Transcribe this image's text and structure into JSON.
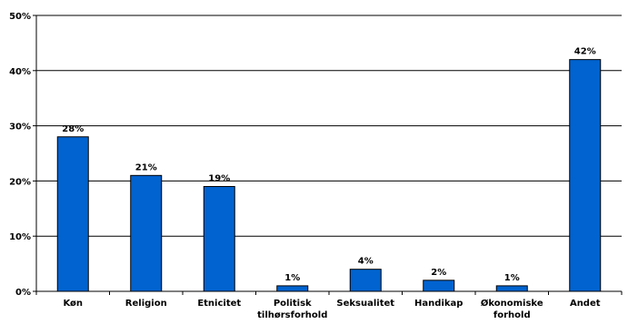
{
  "chart_data": {
    "type": "bar",
    "title": "",
    "xlabel": "",
    "ylabel": "",
    "categories": [
      [
        "Køn"
      ],
      [
        "Religion"
      ],
      [
        "Etnicitet"
      ],
      [
        "Politisk",
        "tilhørsforhold"
      ],
      [
        "Seksualitet"
      ],
      [
        "Handikap"
      ],
      [
        "Økonomiske",
        "forhold"
      ],
      [
        "Andet"
      ]
    ],
    "values": [
      28,
      21,
      19,
      1,
      4,
      2,
      1,
      42
    ],
    "data_labels": [
      "28%",
      "21%",
      "19%",
      "1%",
      "4%",
      "2%",
      "1%",
      "42%"
    ],
    "ylim": [
      0,
      50
    ],
    "yticks": [
      0,
      10,
      20,
      30,
      40,
      50
    ],
    "ytick_labels": [
      "0%",
      "10%",
      "20%",
      "30%",
      "40%",
      "50%"
    ],
    "grid": true,
    "legend": "none",
    "colors": {
      "bar_fill": "#0063CF",
      "bar_stroke": "#000000",
      "grid": "#000000",
      "axis": "#000000"
    }
  }
}
